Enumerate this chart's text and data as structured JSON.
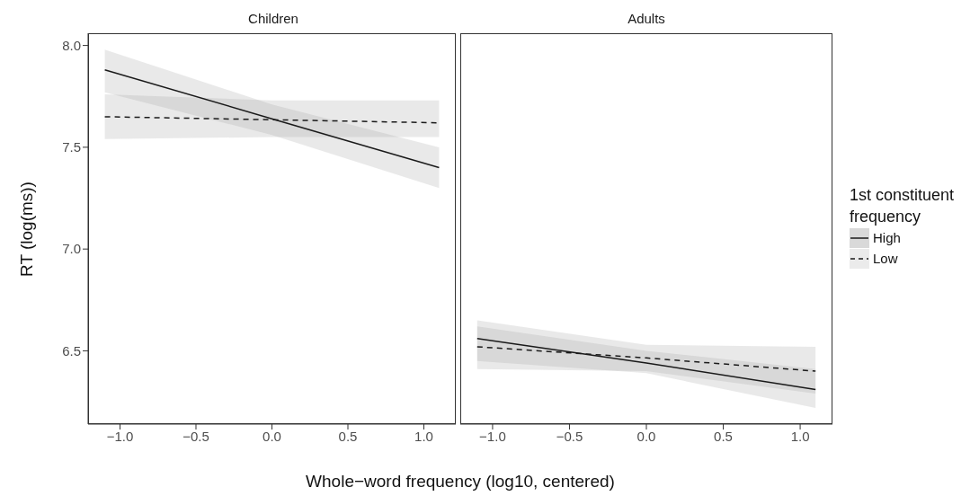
{
  "chart_data": [
    {
      "type": "line",
      "title": "Children",
      "xlabel": "Whole−word frequency (log10, centered)",
      "ylabel": "RT (log(ms))",
      "x": [
        -1.1,
        0,
        1.1
      ],
      "xlim": [
        -1.21,
        1.21
      ],
      "ylim": [
        6.14,
        8.06
      ],
      "xticks": [
        {
          "value": -1,
          "label": "−1.0"
        },
        {
          "value": -0.5,
          "label": "−0.5"
        },
        {
          "value": 0,
          "label": "0.0"
        },
        {
          "value": 0.5,
          "label": "0.5"
        },
        {
          "value": 1,
          "label": "1.0"
        }
      ],
      "yticks": [
        {
          "value": 6.5,
          "label": "6.5"
        },
        {
          "value": 7,
          "label": "7.0"
        },
        {
          "value": 7.5,
          "label": "7.5"
        },
        {
          "value": 8,
          "label": "8.0"
        }
      ],
      "series": [
        {
          "color": "#1a1a1a",
          "line_style": "solid",
          "values": [
            7.88,
            7.64,
            7.4
          ],
          "lower": [
            7.77,
            7.56,
            7.3
          ],
          "upper": [
            7.98,
            7.71,
            7.5
          ]
        },
        {
          "color": "#1a1a1a",
          "line_style": "dashed",
          "values": [
            7.65,
            7.635,
            7.62
          ],
          "lower": [
            7.54,
            7.55,
            7.55
          ],
          "upper": [
            7.76,
            7.73,
            7.73
          ]
        }
      ],
      "legend": false,
      "grid": false
    },
    {
      "type": "line",
      "title": "Adults",
      "legend_title": "1st constituent frequency",
      "x": [
        -1.1,
        0,
        1.1
      ],
      "xlim": [
        -1.21,
        1.21
      ],
      "ylim": [
        6.14,
        8.06
      ],
      "xticks": [
        {
          "value": -1,
          "label": "−1.0"
        },
        {
          "value": -0.5,
          "label": "−0.5"
        },
        {
          "value": 0,
          "label": "0.0"
        },
        {
          "value": 0.5,
          "label": "0.5"
        },
        {
          "value": 1,
          "label": "1.0"
        }
      ],
      "yticks": [
        {
          "value": 6.5,
          "label": null
        },
        {
          "value": 7,
          "label": null
        },
        {
          "value": 7.5,
          "label": null
        },
        {
          "value": 8,
          "label": null
        }
      ],
      "tick_labels": "x",
      "series": [
        {
          "name": "High",
          "color": "#1a1a1a",
          "line_style": "solid",
          "values": [
            6.56,
            6.44,
            6.31
          ],
          "lower": [
            6.45,
            6.39,
            6.22
          ],
          "upper": [
            6.62,
            6.5,
            6.41
          ]
        },
        {
          "name": "Low",
          "color": "#1a1a1a",
          "line_style": "dashed",
          "values": [
            6.52,
            6.465,
            6.4
          ],
          "lower": [
            6.41,
            6.4,
            6.29
          ],
          "upper": [
            6.65,
            6.53,
            6.52
          ]
        }
      ],
      "legend": "right",
      "grid": false
    }
  ]
}
